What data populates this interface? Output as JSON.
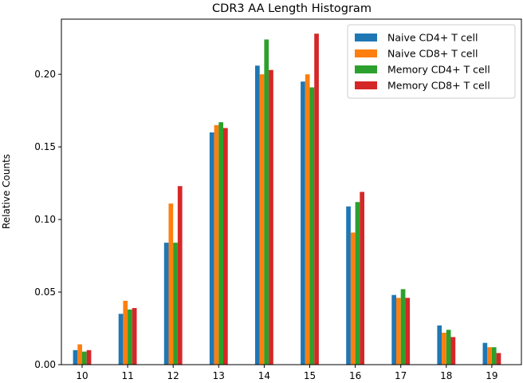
{
  "chart_data": {
    "type": "bar",
    "title": "CDR3 AA Length Histogram",
    "xlabel": "",
    "ylabel": "Relative Counts",
    "categories": [
      "10",
      "11",
      "12",
      "13",
      "14",
      "15",
      "16",
      "17",
      "18",
      "19"
    ],
    "ylim": [
      0,
      0.238
    ],
    "yticks": [
      "0.00",
      "0.05",
      "0.10",
      "0.15",
      "0.20"
    ],
    "grid": false,
    "legend_position": "top-right",
    "series": [
      {
        "name": "Naive CD4+ T cell",
        "color": "#1f77b4",
        "values": [
          0.01,
          0.035,
          0.084,
          0.16,
          0.206,
          0.195,
          0.109,
          0.048,
          0.027,
          0.015
        ]
      },
      {
        "name": "Naive CD8+ T cell",
        "color": "#ff7f0e",
        "values": [
          0.014,
          0.044,
          0.111,
          0.165,
          0.2,
          0.2,
          0.091,
          0.046,
          0.022,
          0.012
        ]
      },
      {
        "name": "Memory CD4+ T cell",
        "color": "#2ca02c",
        "values": [
          0.009,
          0.038,
          0.084,
          0.167,
          0.224,
          0.191,
          0.112,
          0.052,
          0.024,
          0.012
        ]
      },
      {
        "name": "Memory CD8+ T cell",
        "color": "#d62728",
        "values": [
          0.01,
          0.039,
          0.123,
          0.163,
          0.203,
          0.228,
          0.119,
          0.046,
          0.019,
          0.008
        ]
      }
    ]
  }
}
